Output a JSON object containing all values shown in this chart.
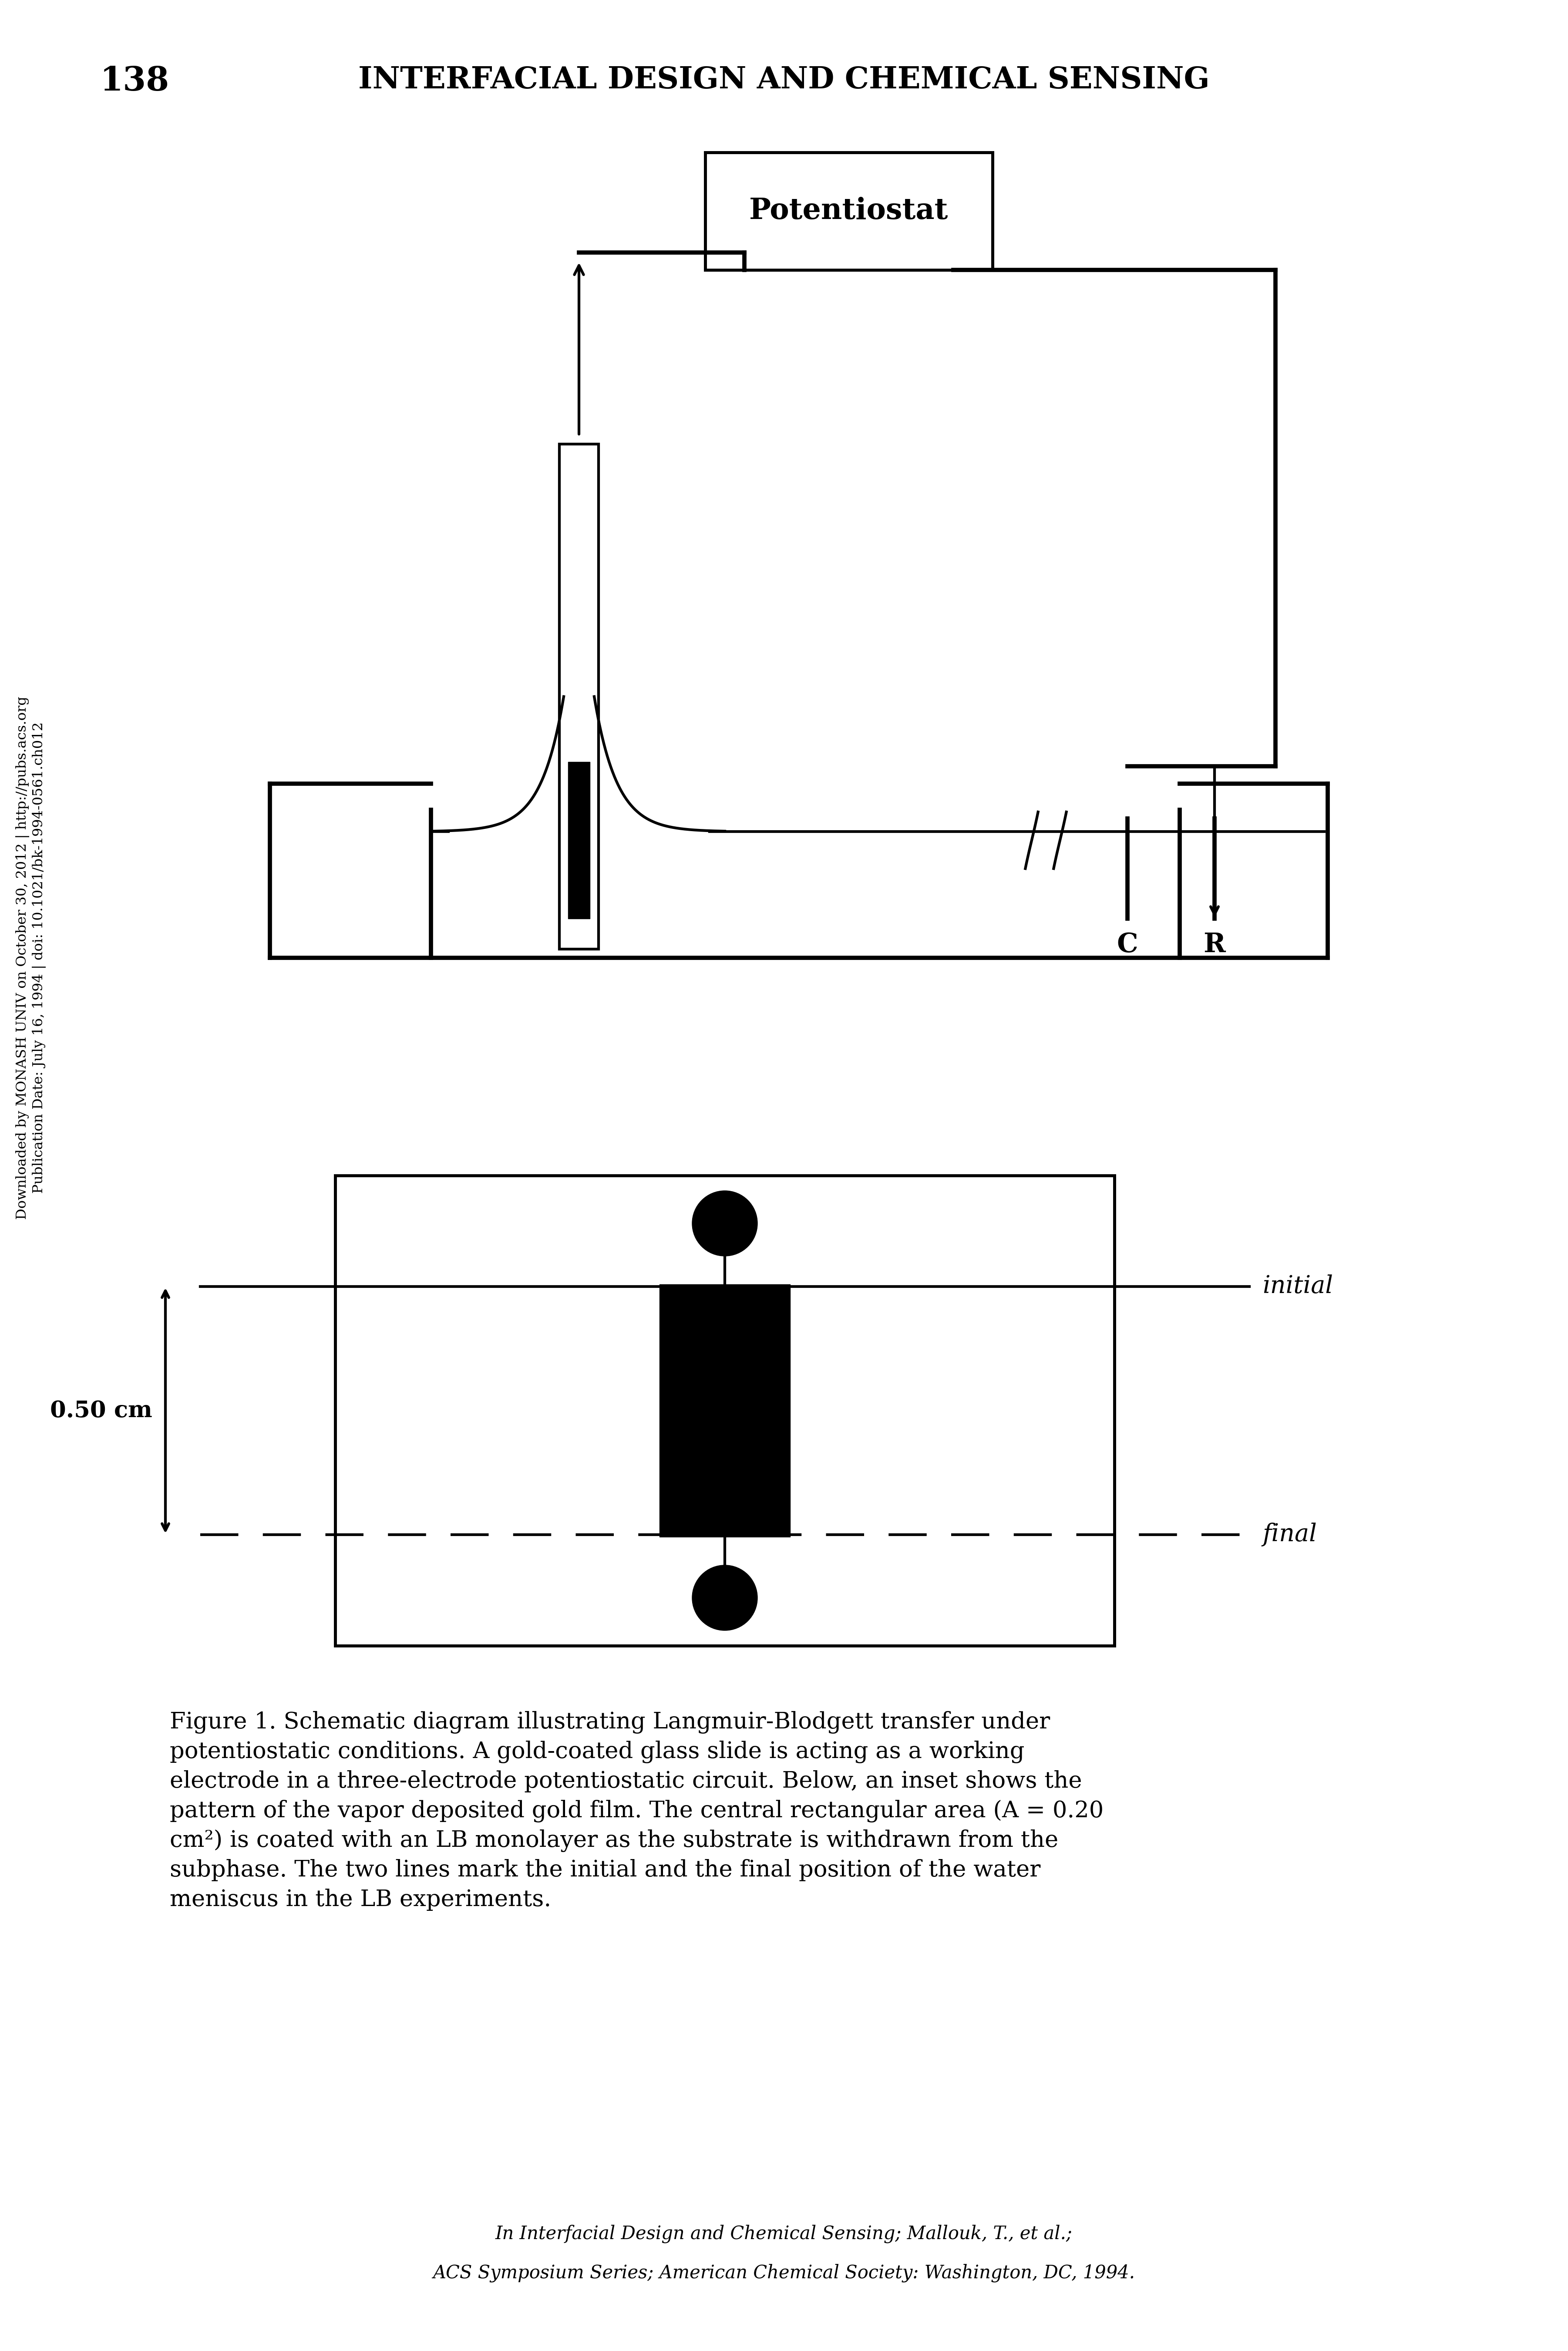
{
  "page_number": "138",
  "header_text": "INTERFACIAL DESIGN AND CHEMICAL SENSING",
  "potentiostat_label": "Potentiostat",
  "caption_lines": [
    "Figure 1. Schematic diagram illustrating Langmuir-Blodgett transfer under",
    "potentiostatic conditions. A gold-coated glass slide is acting as a working",
    "electrode in a three-electrode potentiostatic circuit. Below, an inset shows the",
    "pattern of the vapor deposited gold film. The central rectangular area (A = 0.20",
    "cm²) is coated with an LB monolayer as the substrate is withdrawn from the",
    "subphase. The two lines mark the initial and the final position of the water",
    "meniscus in the LB experiments."
  ],
  "footer_line1": "In Interfacial Design and Chemical Sensing; Mallouk, T., et al.;",
  "footer_line2": "ACS Symposium Series; American Chemical Society: Washington, DC, 1994.",
  "side_text_line1": "Downloaded by MONASH UNIV on October 30, 2012 | http://pubs.acs.org",
  "side_text_line2": "Publication Date: July 16, 1994 | doi: 10.1021/bk-1994-0561.ch012",
  "initial_label": "initial",
  "final_label": "final",
  "scale_label": "0.50 cm",
  "C_label": "C",
  "R_label": "R",
  "bg_color": "#ffffff",
  "ink_color": "#000000"
}
